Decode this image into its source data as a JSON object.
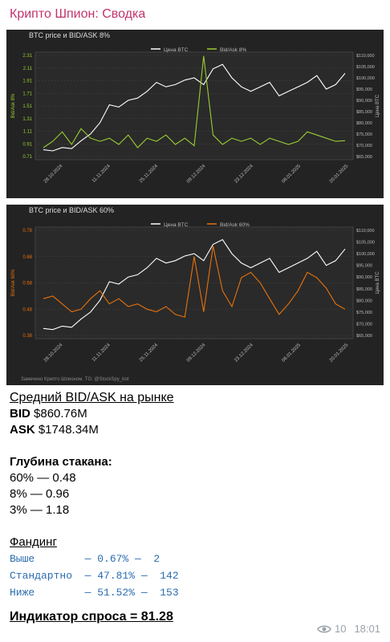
{
  "header": {
    "title": "Крипто Шпион: Сводка"
  },
  "chart_data": [
    {
      "type": "line",
      "title": "BTC price и BID/ASK 8%",
      "legend": [
        "Цена BTC",
        "Bid/Ask 8%"
      ],
      "ylabel_left": "Bid/Ask 8%",
      "ylabel_right": "Цена BTC",
      "yticks_left": [
        "0.71",
        "0.91",
        "1.11",
        "1.31",
        "1.51",
        "1.71",
        "1.91",
        "2.11",
        "2.31"
      ],
      "yticks_right": [
        "$65,000",
        "$70,000",
        "$75,000",
        "$80,000",
        "$85,000",
        "$90,000",
        "$95,000",
        "$100,000",
        "$105,000",
        "$110,000"
      ],
      "xticks": [
        "28.10.2024",
        "11.11.2024",
        "25.11.2024",
        "09.12.2024",
        "23.12.2024",
        "06.01.2025",
        "20.01.2025"
      ],
      "series": [
        {
          "name": "Цена BTC",
          "color": "#ffffff",
          "values": [
            68000,
            67500,
            69000,
            68500,
            72000,
            75000,
            80000,
            88000,
            87000,
            90000,
            91000,
            94000,
            98000,
            96000,
            97000,
            99000,
            100000,
            97000,
            104000,
            106000,
            100000,
            96000,
            94000,
            96000,
            98000,
            92000,
            94000,
            96000,
            98000,
            101000,
            95000,
            97000,
            102000
          ]
        },
        {
          "name": "Bid/Ask 8%",
          "color": "#9acd32",
          "values": [
            0.85,
            0.95,
            1.1,
            0.9,
            1.15,
            1.0,
            0.95,
            1.0,
            0.9,
            1.05,
            0.85,
            1.0,
            0.95,
            1.05,
            0.9,
            1.0,
            0.88,
            2.3,
            1.05,
            0.9,
            1.0,
            0.95,
            1.0,
            0.9,
            1.0,
            0.95,
            0.9,
            0.95,
            1.1,
            1.05,
            1.0,
            0.95,
            0.96
          ]
        }
      ]
    },
    {
      "type": "line",
      "title": "BTC price и BID/ASK 60%",
      "legend": [
        "Цена BTC",
        "Bid/Ask 60%"
      ],
      "ylabel_left": "Bid/Ask 60%",
      "ylabel_right": "Цена BTC",
      "yticks_left": [
        "0.38",
        "0.48",
        "0.58",
        "0.68",
        "0.78"
      ],
      "yticks_right": [
        "$65,000",
        "$70,000",
        "$75,000",
        "$80,000",
        "$85,000",
        "$90,000",
        "$95,000",
        "$100,000",
        "$105,000",
        "$110,000"
      ],
      "xticks": [
        "28.10.2024",
        "11.11.2024",
        "25.11.2024",
        "09.12.2024",
        "23.12.2024",
        "06.01.2025",
        "20.01.2025"
      ],
      "footnote": "Замечено Крипто Шпионом. TG: @StockSpy_bot",
      "series": [
        {
          "name": "Цена BTC",
          "color": "#ffffff",
          "values": [
            68000,
            67500,
            69000,
            68500,
            72000,
            75000,
            80000,
            88000,
            87000,
            90000,
            91000,
            94000,
            98000,
            96000,
            97000,
            99000,
            100000,
            97000,
            104000,
            106000,
            100000,
            96000,
            94000,
            96000,
            98000,
            92000,
            94000,
            96000,
            98000,
            101000,
            95000,
            97000,
            102000
          ]
        },
        {
          "name": "Bid/Ask 60%",
          "color": "#e8720c",
          "values": [
            0.52,
            0.53,
            0.5,
            0.47,
            0.48,
            0.52,
            0.55,
            0.5,
            0.52,
            0.49,
            0.5,
            0.48,
            0.47,
            0.49,
            0.46,
            0.45,
            0.68,
            0.47,
            0.72,
            0.55,
            0.49,
            0.6,
            0.62,
            0.58,
            0.52,
            0.46,
            0.5,
            0.55,
            0.62,
            0.6,
            0.56,
            0.5,
            0.48
          ]
        }
      ]
    }
  ],
  "message": {
    "avg_title": "Средний BID/ASK на рынке",
    "bid_label": "BID",
    "bid_value": " $860.76M",
    "ask_label": "ASK",
    "ask_value": " $1748.34M",
    "depth_title": "Глубина стакана:",
    "depth": [
      "60% — 0.48",
      "8% — 0.96",
      "3% — 1.18"
    ],
    "funding_title": "Фандинг",
    "funding": [
      "Выше        — 0.67% —  2",
      "Стандартно  — 47.81% —  142",
      "Ниже        — 51.52% —  153"
    ],
    "demand": "Индикатор спроса = 81.28"
  },
  "meta": {
    "views": "10",
    "time": "18:01"
  }
}
